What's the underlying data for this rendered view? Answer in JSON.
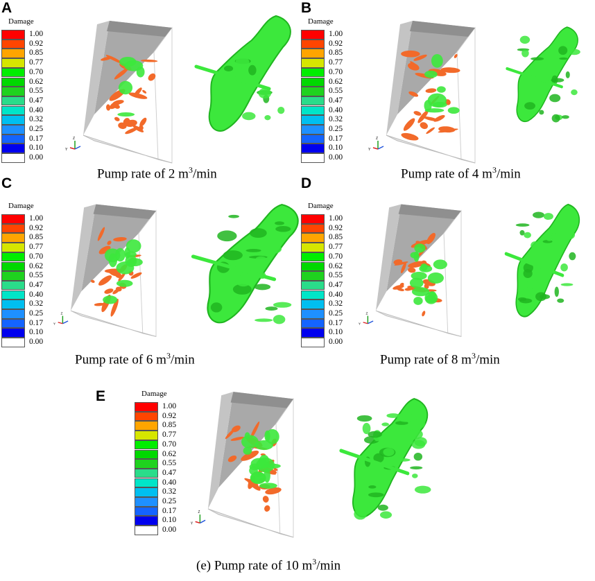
{
  "legend": {
    "title": "Damage",
    "levels": [
      {
        "value": "1.00",
        "color": "#ff0000"
      },
      {
        "value": "0.92",
        "color": "#ff4500"
      },
      {
        "value": "0.85",
        "color": "#ffa500"
      },
      {
        "value": "0.77",
        "color": "#d6e600"
      },
      {
        "value": "0.70",
        "color": "#00ee00"
      },
      {
        "value": "0.62",
        "color": "#00d800"
      },
      {
        "value": "0.55",
        "color": "#1fd21f"
      },
      {
        "value": "0.47",
        "color": "#2adc8a"
      },
      {
        "value": "0.40",
        "color": "#00e5c8"
      },
      {
        "value": "0.32",
        "color": "#00bff0"
      },
      {
        "value": "0.25",
        "color": "#1e90ff"
      },
      {
        "value": "0.17",
        "color": "#1464ff"
      },
      {
        "value": "0.10",
        "color": "#0000ee"
      },
      {
        "value": "0.00",
        "color": "#ffffff"
      }
    ]
  },
  "panels": [
    {
      "letter": "A",
      "caption_prefix": "Pump rate of 2 m",
      "caption_sup": "3",
      "caption_suffix": "/min"
    },
    {
      "letter": "B",
      "caption_prefix": "Pump rate of 4 m",
      "caption_sup": "3",
      "caption_suffix": "/min"
    },
    {
      "letter": "C",
      "caption_prefix": "Pump rate of 6 m",
      "caption_sup": "3",
      "caption_suffix": "/min"
    },
    {
      "letter": "D",
      "caption_prefix": "Pump rate of 8 m",
      "caption_sup": "3",
      "caption_suffix": "/min"
    },
    {
      "letter": "E",
      "caption_prefix": "(e) Pump rate of 10 m",
      "caption_sup": "3",
      "caption_suffix": "/min"
    }
  ],
  "colors": {
    "fracture": "#f26a2a",
    "damage_zone": "#3ce83c",
    "damage_zone_dark": "#20b520",
    "box_wall": "#a9a9a9",
    "box_wall_light": "#c4c4c4"
  },
  "axis_triad": {
    "label_y": "Y",
    "label_z": "Z"
  }
}
